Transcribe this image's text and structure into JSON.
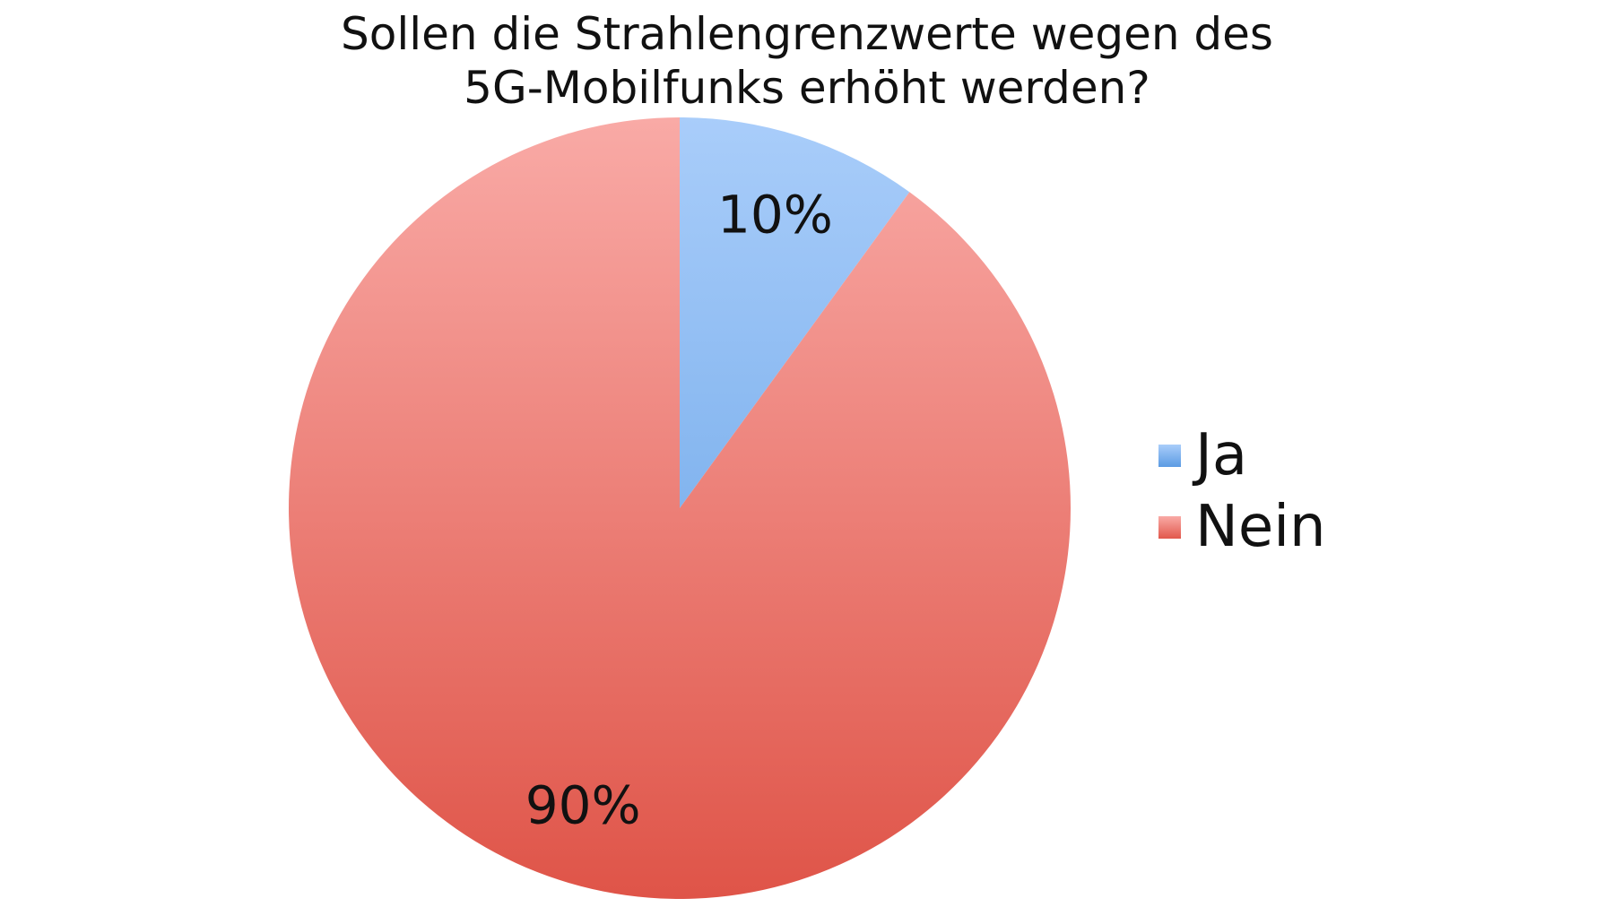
{
  "chart_data": {
    "type": "pie",
    "title_lines": [
      "Sollen die Strahlengrenzwerte wegen des",
      "5G-Mobilfunks erhöht werden?"
    ],
    "slices": [
      {
        "label": "Ja",
        "value": 10,
        "value_label": "10%",
        "color_top": "#a9cdfa",
        "color_bottom": "#5b9be3",
        "swatch": "#5b9be3"
      },
      {
        "label": "Nein",
        "value": 90,
        "value_label": "90%",
        "color_top": "#f9aaa6",
        "color_bottom": "#df5448",
        "swatch": "#e2584c"
      }
    ],
    "start_angle": "12 o'clock",
    "direction": "clockwise",
    "legend_position": "right"
  }
}
